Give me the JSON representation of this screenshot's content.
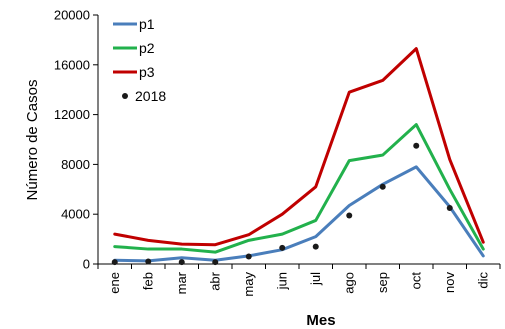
{
  "chart_data": {
    "type": "line",
    "xlabel": "Mes",
    "ylabel": "Número de Casos",
    "categories": [
      "ene",
      "feb",
      "mar",
      "abr",
      "may",
      "jun",
      "jul",
      "ago",
      "sep",
      "oct",
      "nov",
      "dic"
    ],
    "ylim": [
      0,
      20000
    ],
    "yticks": [
      0,
      4000,
      8000,
      12000,
      16000,
      20000
    ],
    "ytick_labels": [
      "0",
      "4000",
      "8000",
      "12000",
      "16000",
      "20000"
    ],
    "grid": false,
    "legend_position": "top-left",
    "series": [
      {
        "name": "p1",
        "style": "line",
        "color": "#4a7ebb",
        "values": [
          300,
          250,
          500,
          300,
          650,
          1150,
          2200,
          4700,
          6400,
          7800,
          4600,
          650
        ]
      },
      {
        "name": "p2",
        "style": "line",
        "color": "#22b14c",
        "values": [
          1400,
          1200,
          1200,
          950,
          1900,
          2400,
          3500,
          8300,
          8750,
          11200,
          6000,
          1200
        ]
      },
      {
        "name": "p3",
        "style": "line",
        "color": "#c00000",
        "values": [
          2400,
          1900,
          1600,
          1550,
          2350,
          4000,
          6200,
          13800,
          14750,
          17300,
          8400,
          1750
        ]
      },
      {
        "name": "2018",
        "style": "marker",
        "color": "#1a1a1a",
        "values": [
          150,
          200,
          150,
          150,
          600,
          1300,
          1400,
          3900,
          6200,
          9500,
          4500,
          null
        ]
      }
    ]
  }
}
